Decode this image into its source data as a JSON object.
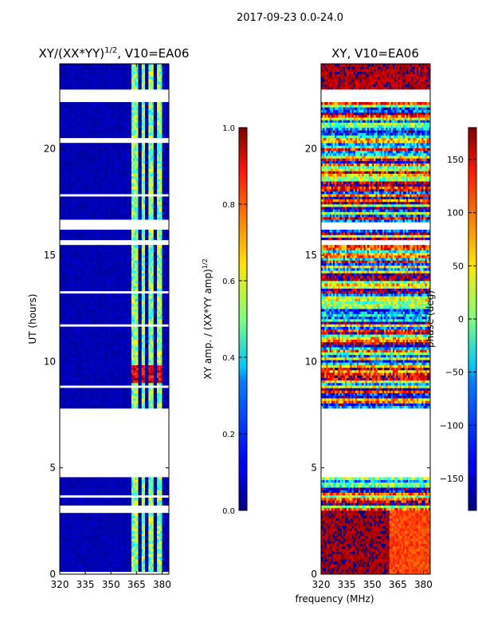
{
  "figure_title": "2017-09-23 0.0-24.0",
  "shared_xlabel": "frequency (MHz)",
  "chart_data": [
    {
      "type": "heatmap",
      "title_main": "XY/(XX*YY)",
      "title_exp": "1/2",
      "title_tail": ", V10=EA06",
      "xlabel": "frequency (MHz)",
      "ylabel": "UT (hours)",
      "xlim": [
        320,
        384
      ],
      "ylim": [
        0,
        24
      ],
      "xticks": [
        320,
        335,
        350,
        365,
        380
      ],
      "yticks": [
        0,
        5,
        10,
        15,
        20
      ],
      "colormap": "jet",
      "colorbar": {
        "label_main": "XY amp. / (XX*YY amp)",
        "label_exp": "1/2",
        "range": [
          0.0,
          1.0
        ],
        "ticks": [
          "0.0",
          "0.2",
          "0.4",
          "0.6",
          "0.8",
          "1.0"
        ]
      },
      "data_gaps_hours": [
        [
          4.6,
          7.75
        ],
        [
          2.9,
          3.1
        ],
        [
          15.5,
          15.7
        ],
        [
          16.2,
          16.6
        ],
        [
          20.3,
          20.5
        ],
        [
          22.2,
          22.8
        ]
      ],
      "bright_channels_mhz": [
        [
          362,
          366
        ],
        [
          368,
          370
        ],
        [
          372,
          375
        ],
        [
          377,
          380
        ]
      ]
    },
    {
      "type": "heatmap",
      "title": "XY, V10=EA06",
      "xlabel": "frequency (MHz)",
      "ylabel": "",
      "xlim": [
        320,
        384
      ],
      "ylim": [
        0,
        24
      ],
      "xticks": [
        320,
        335,
        350,
        365,
        380
      ],
      "yticks": [
        0,
        5,
        10,
        15,
        20
      ],
      "colormap": "jet",
      "colorbar": {
        "label": "phase (deg)",
        "range": [
          -180,
          180
        ],
        "ticks": [
          "−150",
          "−100",
          "−50",
          "0",
          "50",
          "100",
          "150"
        ],
        "tick_values": [
          -150,
          -100,
          -50,
          0,
          50,
          100,
          150
        ]
      },
      "data_gaps_hours": [
        [
          4.6,
          7.75
        ],
        [
          15.5,
          15.7
        ],
        [
          16.2,
          16.6
        ],
        [
          22.2,
          22.8
        ]
      ]
    }
  ]
}
